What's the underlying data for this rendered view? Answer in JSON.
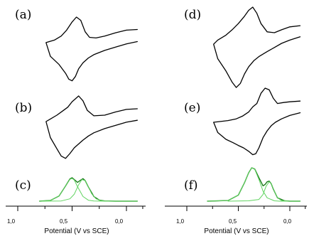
{
  "figure": {
    "panel_labels": [
      "(a)",
      "(b)",
      "(c)",
      "(d)",
      "(e)",
      "(f)"
    ],
    "x_axis_title": "Potential (V vs SCE)",
    "x_tick_labels": [
      "1,0",
      "0,5",
      "0,0"
    ]
  },
  "colors": {
    "cv": "#000000",
    "fit_envelope": "#1a7a1a",
    "fit_component": "#5fd35f"
  },
  "chart_data": [
    {
      "type": "line",
      "panel": "(a)",
      "description_type": "cyclic voltammogram",
      "x_range": [
        1.0,
        -0.1
      ],
      "series": [
        {
          "name": "",
          "x": [
            -0.1,
            0.0,
            0.1,
            0.2,
            0.28,
            0.34,
            0.38,
            0.42,
            0.46,
            0.5,
            0.55,
            0.6,
            0.66,
            0.74,
            0.7,
            0.62,
            0.56,
            0.53,
            0.5,
            0.47,
            0.44,
            0.4,
            0.35,
            0.3,
            0.2,
            0.1,
            0.0,
            -0.1
          ],
          "y": [
            0.62,
            0.6,
            0.52,
            0.42,
            0.36,
            0.38,
            0.55,
            0.9,
            1.0,
            0.85,
            0.6,
            0.42,
            0.3,
            0.22,
            -0.2,
            -0.45,
            -0.72,
            -0.9,
            -0.95,
            -0.82,
            -0.58,
            -0.4,
            -0.25,
            -0.15,
            -0.02,
            0.08,
            0.18,
            0.25
          ]
        }
      ]
    },
    {
      "type": "line",
      "panel": "(b)",
      "description_type": "cyclic voltammogram",
      "x_range": [
        1.0,
        -0.1
      ],
      "series": [
        {
          "name": "",
          "x": [
            -0.1,
            0.0,
            0.1,
            0.2,
            0.3,
            0.36,
            0.4,
            0.44,
            0.5,
            0.54,
            0.58,
            0.64,
            0.7,
            0.74,
            0.7,
            0.64,
            0.6,
            0.56,
            0.52,
            0.48,
            0.44,
            0.4,
            0.35,
            0.3,
            0.2,
            0.1,
            0.0,
            -0.1
          ],
          "y": [
            0.6,
            0.58,
            0.5,
            0.4,
            0.38,
            0.55,
            0.85,
            1.0,
            0.82,
            0.65,
            0.55,
            0.4,
            0.28,
            0.2,
            -0.3,
            -0.65,
            -0.88,
            -0.95,
            -0.8,
            -0.62,
            -0.5,
            -0.38,
            -0.25,
            -0.15,
            -0.02,
            0.08,
            0.18,
            0.24
          ]
        }
      ]
    },
    {
      "type": "line",
      "panel": "(c)",
      "description_type": "gaussian deconvolution",
      "x_range": [
        1.0,
        -0.1
      ],
      "series": [
        {
          "name": "",
          "x": [
            0.8,
            0.7,
            0.62,
            0.56,
            0.52,
            0.5,
            0.48,
            0.45,
            0.42,
            0.4,
            0.38,
            0.35,
            0.3,
            0.25,
            0.2,
            0.1,
            0.0,
            -0.1
          ],
          "y": [
            0,
            0.03,
            0.22,
            0.65,
            0.95,
            1.0,
            0.92,
            0.8,
            0.9,
            0.96,
            0.88,
            0.6,
            0.2,
            0.05,
            0.01,
            0,
            0,
            0
          ]
        },
        {
          "name": "",
          "x": [
            0.8,
            0.7,
            0.62,
            0.56,
            0.52,
            0.5,
            0.48,
            0.45,
            0.4,
            0.35,
            0.3,
            0.2,
            0.1,
            0.0,
            -0.1
          ],
          "y": [
            0,
            0.03,
            0.22,
            0.65,
            0.93,
            0.97,
            0.9,
            0.62,
            0.2,
            0.04,
            0.01,
            0,
            0,
            0,
            0
          ]
        },
        {
          "name": "",
          "x": [
            0.8,
            0.6,
            0.52,
            0.48,
            0.44,
            0.41,
            0.38,
            0.35,
            0.32,
            0.28,
            0.24,
            0.2,
            0.1,
            0.0,
            -0.1
          ],
          "y": [
            0,
            0.01,
            0.1,
            0.3,
            0.7,
            0.92,
            0.88,
            0.6,
            0.32,
            0.1,
            0.03,
            0.01,
            0,
            0,
            0
          ]
        }
      ]
    },
    {
      "type": "line",
      "panel": "(d)",
      "description_type": "cyclic voltammogram",
      "x_range": [
        1.0,
        -0.1
      ],
      "series": [
        {
          "name": "",
          "x": [
            -0.1,
            0.0,
            0.08,
            0.15,
            0.22,
            0.28,
            0.32,
            0.36,
            0.4,
            0.44,
            0.5,
            0.56,
            0.62,
            0.7,
            0.74,
            0.7,
            0.62,
            0.56,
            0.52,
            0.48,
            0.44,
            0.4,
            0.35,
            0.3,
            0.22,
            0.15,
            0.08,
            0.0,
            -0.1
          ],
          "y": [
            0.55,
            0.52,
            0.45,
            0.38,
            0.4,
            0.6,
            0.85,
            1.0,
            0.92,
            0.78,
            0.6,
            0.45,
            0.32,
            0.2,
            0.1,
            -0.25,
            -0.55,
            -0.82,
            -0.95,
            -0.85,
            -0.62,
            -0.45,
            -0.3,
            -0.2,
            -0.08,
            0.02,
            0.12,
            0.2,
            0.28
          ]
        }
      ]
    },
    {
      "type": "line",
      "panel": "(e)",
      "description_type": "cyclic voltammogram",
      "x_range": [
        1.0,
        -0.1
      ],
      "series": [
        {
          "name": "",
          "x": [
            -0.1,
            0.0,
            0.06,
            0.12,
            0.16,
            0.2,
            0.24,
            0.28,
            0.32,
            0.36,
            0.4,
            0.46,
            0.52,
            0.6,
            0.68,
            0.74,
            0.7,
            0.62,
            0.55,
            0.5,
            0.45,
            0.4,
            0.36,
            0.33,
            0.3,
            0.26,
            0.22,
            0.18,
            0.14,
            0.08,
            0.0,
            -0.1
          ],
          "y": [
            0.62,
            0.6,
            0.58,
            0.55,
            0.7,
            0.95,
            1.0,
            0.85,
            0.55,
            0.45,
            0.3,
            0.18,
            0.1,
            0.05,
            0.02,
            0.0,
            -0.3,
            -0.5,
            -0.6,
            -0.68,
            -0.75,
            -0.85,
            -0.95,
            -0.92,
            -0.75,
            -0.45,
            -0.25,
            -0.1,
            0.0,
            0.1,
            0.2,
            0.28
          ]
        }
      ]
    },
    {
      "type": "line",
      "panel": "(f)",
      "description_type": "gaussian deconvolution",
      "x_range": [
        1.0,
        -0.1
      ],
      "series": [
        {
          "name": "",
          "x": [
            0.8,
            0.6,
            0.5,
            0.44,
            0.4,
            0.37,
            0.34,
            0.3,
            0.26,
            0.24,
            0.22,
            0.2,
            0.18,
            0.16,
            0.12,
            0.05,
            0.0,
            -0.1
          ],
          "y": [
            0,
            0.02,
            0.18,
            0.55,
            0.85,
            1.0,
            0.96,
            0.7,
            0.46,
            0.5,
            0.58,
            0.6,
            0.52,
            0.36,
            0.1,
            0.01,
            0,
            0
          ]
        },
        {
          "name": "",
          "x": [
            0.8,
            0.6,
            0.5,
            0.44,
            0.4,
            0.37,
            0.34,
            0.3,
            0.26,
            0.22,
            0.15,
            0.1,
            0.0,
            -0.1
          ],
          "y": [
            0,
            0.02,
            0.18,
            0.55,
            0.85,
            1.0,
            0.95,
            0.65,
            0.3,
            0.1,
            0.01,
            0,
            0,
            0
          ]
        },
        {
          "name": "",
          "x": [
            0.6,
            0.4,
            0.3,
            0.26,
            0.23,
            0.2,
            0.18,
            0.15,
            0.12,
            0.08,
            0.0,
            -0.1
          ],
          "y": [
            0,
            0.01,
            0.05,
            0.2,
            0.45,
            0.58,
            0.52,
            0.3,
            0.1,
            0.02,
            0,
            0
          ]
        }
      ]
    }
  ]
}
